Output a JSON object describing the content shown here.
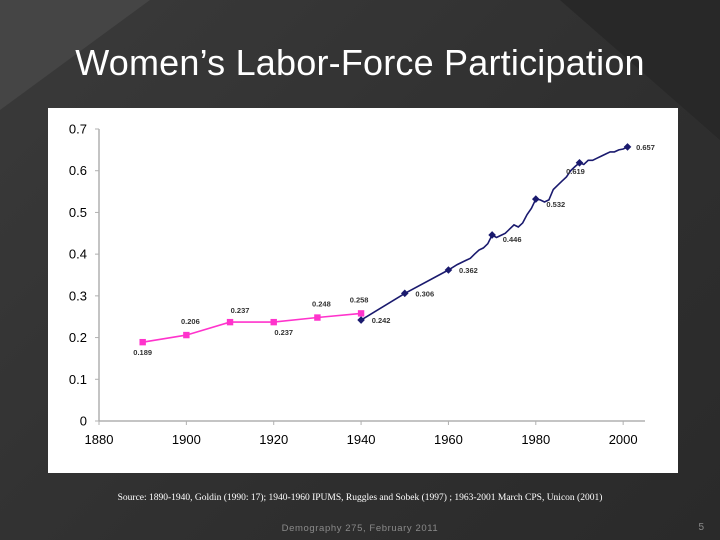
{
  "slide": {
    "title": "Women’s Labor-Force Participation",
    "source": "Source: 1890-1940, Goldin (1990: 17); 1940-1960 IPUMS, Ruggles and Sobek (1997) ; 1963-2001 March CPS, Unicon (2001)",
    "footer": "Demography 275, February 2011",
    "page_number": "5"
  },
  "colors": {
    "background": "#333333",
    "series_goldin": "#ff33cc",
    "series_cps": "#1a1a6e",
    "axis": "#b0b0b0"
  },
  "chart_data": {
    "type": "line",
    "title": "",
    "xlabel": "",
    "ylabel": "",
    "xlim": [
      1880,
      2005
    ],
    "ylim": [
      0,
      0.7
    ],
    "x_ticks": [
      "1880",
      "1900",
      "1920",
      "1940",
      "1960",
      "1980",
      "2000"
    ],
    "y_ticks": [
      "0",
      "0.1",
      "0.2",
      "0.3",
      "0.4",
      "0.5",
      "0.6",
      "0.7"
    ],
    "grid": false,
    "series": [
      {
        "marker": "square",
        "color": "#ff33cc",
        "points": [
          {
            "x": 1890,
            "y": 0.189,
            "label": "0.189"
          },
          {
            "x": 1900,
            "y": 0.206,
            "label": "0.206"
          },
          {
            "x": 1910,
            "y": 0.237,
            "label": "0.237"
          },
          {
            "x": 1920,
            "y": 0.237,
            "label": "0.237"
          },
          {
            "x": 1930,
            "y": 0.248,
            "label": "0.248"
          },
          {
            "x": 1940,
            "y": 0.258,
            "label": "0.258"
          }
        ]
      },
      {
        "marker": "diamond",
        "color": "#1a1a6e",
        "points": [
          {
            "x": 1940,
            "y": 0.242,
            "label": "0.242"
          },
          {
            "x": 1950,
            "y": 0.306,
            "label": "0.306"
          },
          {
            "x": 1960,
            "y": 0.362,
            "label": "0.362"
          },
          {
            "x": 1970,
            "y": 0.446,
            "label": "0.446"
          },
          {
            "x": 1980,
            "y": 0.532,
            "label": "0.532"
          },
          {
            "x": 1990,
            "y": 0.619,
            "label": "0.619"
          },
          {
            "x": 2001,
            "y": 0.657,
            "label": "0.657"
          }
        ],
        "line": [
          [
            1940,
            0.242
          ],
          [
            1950,
            0.306
          ],
          [
            1960,
            0.362
          ],
          [
            1962,
            0.375
          ],
          [
            1963,
            0.38
          ],
          [
            1964,
            0.385
          ],
          [
            1965,
            0.39
          ],
          [
            1966,
            0.4
          ],
          [
            1967,
            0.41
          ],
          [
            1968,
            0.415
          ],
          [
            1969,
            0.425
          ],
          [
            1970,
            0.446
          ],
          [
            1971,
            0.44
          ],
          [
            1972,
            0.445
          ],
          [
            1973,
            0.45
          ],
          [
            1974,
            0.46
          ],
          [
            1975,
            0.47
          ],
          [
            1976,
            0.465
          ],
          [
            1977,
            0.475
          ],
          [
            1978,
            0.495
          ],
          [
            1979,
            0.51
          ],
          [
            1980,
            0.532
          ],
          [
            1981,
            0.53
          ],
          [
            1982,
            0.525
          ],
          [
            1983,
            0.53
          ],
          [
            1984,
            0.555
          ],
          [
            1985,
            0.565
          ],
          [
            1986,
            0.575
          ],
          [
            1987,
            0.585
          ],
          [
            1988,
            0.6
          ],
          [
            1989,
            0.61
          ],
          [
            1990,
            0.619
          ],
          [
            1991,
            0.615
          ],
          [
            1992,
            0.625
          ],
          [
            1993,
            0.625
          ],
          [
            1994,
            0.63
          ],
          [
            1995,
            0.635
          ],
          [
            1996,
            0.64
          ],
          [
            1997,
            0.645
          ],
          [
            1998,
            0.645
          ],
          [
            1999,
            0.65
          ],
          [
            2000,
            0.652
          ],
          [
            2001,
            0.657
          ]
        ]
      }
    ]
  }
}
